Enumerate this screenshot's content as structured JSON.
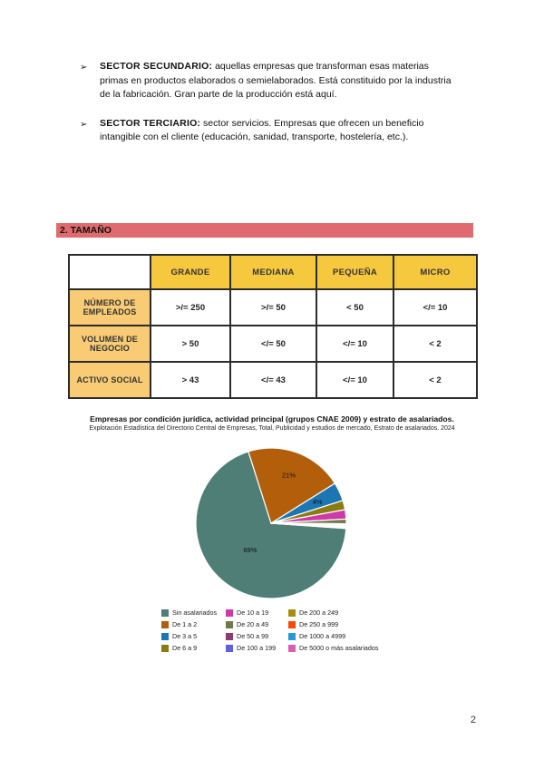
{
  "page": {
    "number": "2",
    "bullet_glyph": "➢"
  },
  "bullets": [
    {
      "title": "SECTOR SECUNDARIO:",
      "text": " aquellas empresas que transforman esas materias primas en productos elaborados o semielaborados. Está constituido por la industria de la fabricación. Gran parte de la producción está aquí."
    },
    {
      "title": "SECTOR TERCIARIO:",
      "text": " sector servicios. Empresas que ofrecen un beneficio intangible con el cliente (educación, sanidad, transporte, hostelería, etc.)."
    }
  ],
  "section_header": {
    "label": "2. TAMAÑO",
    "background": "#e06b6e"
  },
  "table": {
    "column_headers": [
      "GRANDE",
      "MEDIANA",
      "PEQUEÑA",
      "MICRO"
    ],
    "rows": [
      {
        "header": "NÚMERO DE EMPLEADOS",
        "values": [
          ">/= 250",
          ">/= 50",
          "< 50",
          "</= 10"
        ]
      },
      {
        "header": "VOLUMEN DE NEGOCIO",
        "values": [
          "> 50",
          "</= 50",
          "</= 10",
          "< 2"
        ]
      },
      {
        "header": "ACTIVO SOCIAL",
        "values": [
          "> 43",
          "</= 43",
          "</= 10",
          "< 2"
        ]
      }
    ],
    "header_bg": "#f5c83e",
    "row_header_bg": "#f8cb74"
  },
  "chart_data": {
    "type": "pie",
    "title": "Empresas por condición jurídica, actividad principal (grupos CNAE 2009) y estrato de asalariados.",
    "subtitle": "Explotación Estadística del Directorio Central de Empresas, Total, Publicidad y estudios de mercado, Estrato de asalariados. 2024",
    "start_angle_deg": 94,
    "direction": "clockwise",
    "legend_position": "bottom",
    "slices": [
      {
        "label": "Sin asalariados",
        "value": 69,
        "color": "#4e7e76",
        "pct_label": "69%"
      },
      {
        "label": "De 1 a 2",
        "value": 21,
        "color": "#b25e0b",
        "pct_label": "21%"
      },
      {
        "label": "De 3 a 5",
        "value": 4,
        "color": "#1d76b4",
        "pct_label": "4%"
      },
      {
        "label": "De 6 a 9",
        "value": 2,
        "color": "#8a7c10",
        "pct_label": ""
      },
      {
        "label": "De 10 a 19",
        "value": 2,
        "color": "#cb3ba7",
        "pct_label": ""
      },
      {
        "label": "De 20 a 49",
        "value": 1,
        "color": "#6d7c47",
        "pct_label": ""
      },
      {
        "label": "De 50 a 99",
        "value": 0.2,
        "color": "#8c3a70",
        "pct_label": ""
      },
      {
        "label": "De 100 a 199",
        "value": 0.2,
        "color": "#5f5fe0",
        "pct_label": ""
      },
      {
        "label": "De 200 a 249",
        "value": 0.2,
        "color": "#a98e0e",
        "pct_label": ""
      },
      {
        "label": "De 250 a 999",
        "value": 0.2,
        "color": "#f84a05",
        "pct_label": ""
      },
      {
        "label": "De 1000 a 4999",
        "value": 0.1,
        "color": "#2598d5",
        "pct_label": ""
      },
      {
        "label": "De 5000 o más asalariados",
        "value": 0.1,
        "color": "#d95fb5",
        "pct_label": ""
      }
    ]
  }
}
